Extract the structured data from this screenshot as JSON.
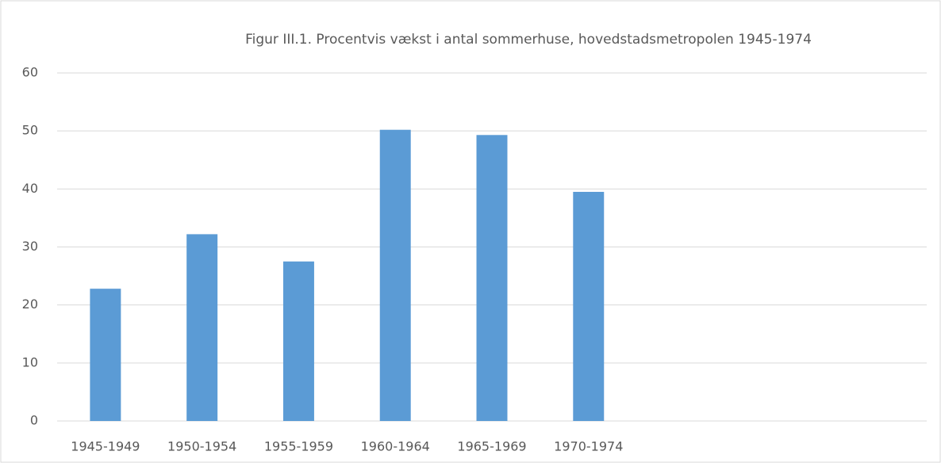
{
  "chart_data": {
    "type": "bar",
    "title": "Figur III.1. Procentvis vækst i antal sommerhuse, hovedstadsmetropolen 1945-1974",
    "categories": [
      "1945-1949",
      "1950-1954",
      "1955-1959",
      "1960-1964",
      "1965-1969",
      "1970-1974",
      null,
      null,
      null
    ],
    "values": [
      22.8,
      32.2,
      27.5,
      50.2,
      49.3,
      39.5,
      null,
      null,
      null
    ],
    "color": "#5b9bd5",
    "ylim": [
      0,
      60
    ],
    "yticks": [
      0,
      10,
      20,
      30,
      40,
      50,
      60
    ],
    "grid": true
  }
}
